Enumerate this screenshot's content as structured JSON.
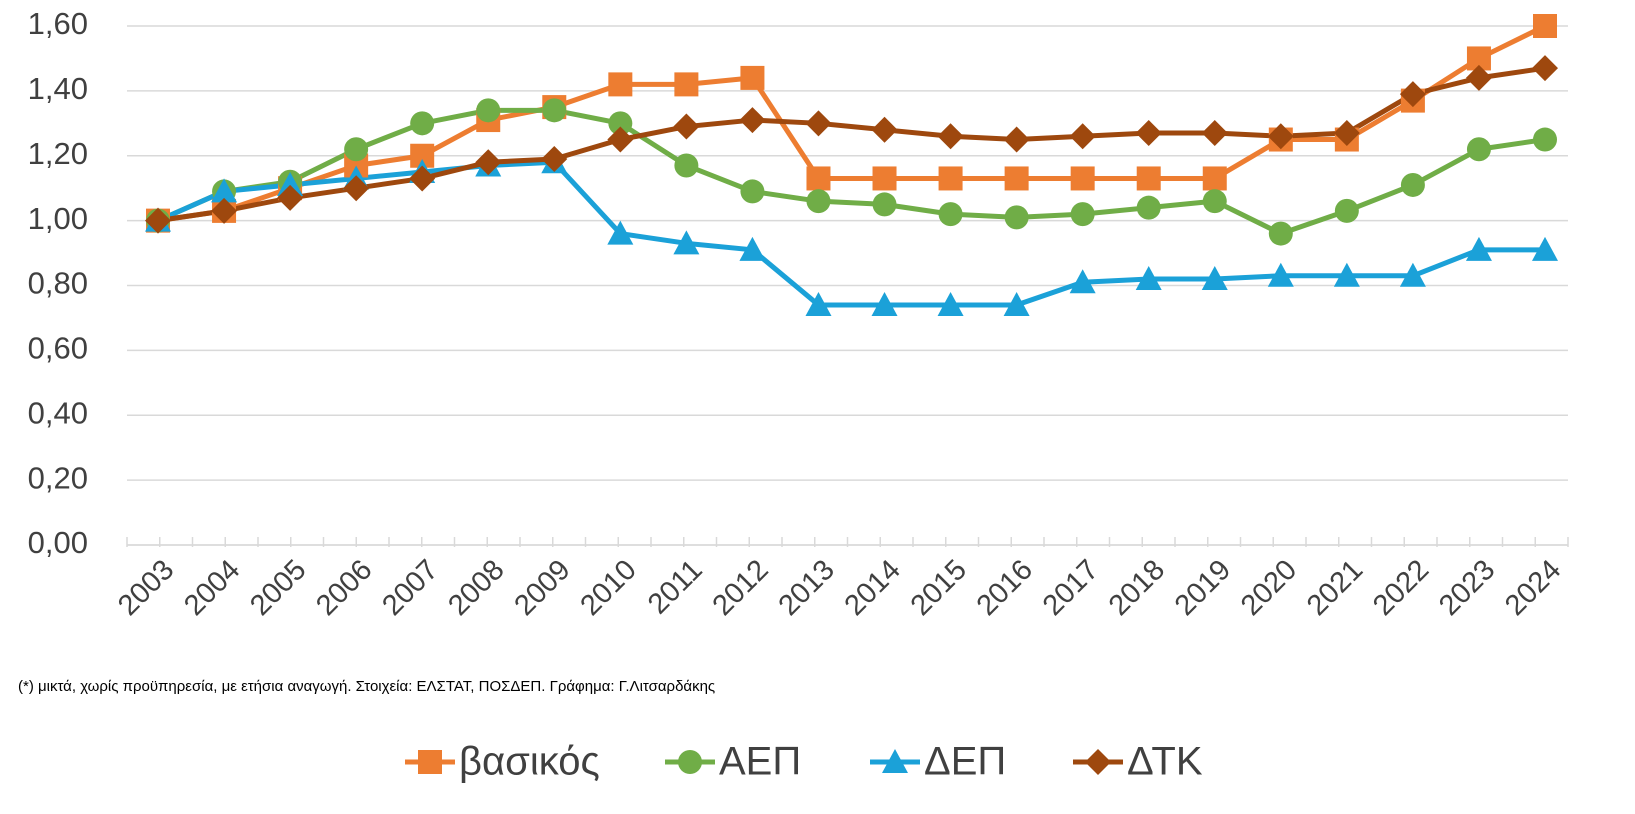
{
  "chart_data": {
    "type": "line",
    "categories": [
      "2003",
      "2004",
      "2005",
      "2006",
      "2007",
      "2008",
      "2009",
      "2010",
      "2011",
      "2012",
      "2013",
      "2014",
      "2015",
      "2016",
      "2017",
      "2018",
      "2019",
      "2020",
      "2021",
      "2022",
      "2023",
      "2024"
    ],
    "series": [
      {
        "name": "βασικός",
        "color": "#ed7d31",
        "marker": "square",
        "values": [
          1.0,
          1.03,
          1.1,
          1.17,
          1.2,
          1.31,
          1.35,
          1.42,
          1.42,
          1.44,
          1.13,
          1.13,
          1.13,
          1.13,
          1.13,
          1.13,
          1.13,
          1.25,
          1.25,
          1.37,
          1.5,
          1.6
        ]
      },
      {
        "name": "ΑΕΠ",
        "color": "#70ad47",
        "marker": "circle",
        "values": [
          1.0,
          1.09,
          1.12,
          1.22,
          1.3,
          1.34,
          1.34,
          1.3,
          1.17,
          1.09,
          1.06,
          1.05,
          1.02,
          1.01,
          1.02,
          1.04,
          1.06,
          0.96,
          1.03,
          1.11,
          1.22,
          1.25
        ]
      },
      {
        "name": "ΔΕΠ",
        "color": "#1ba1d8",
        "marker": "triangle",
        "values": [
          1.0,
          1.09,
          1.11,
          1.13,
          1.15,
          1.17,
          1.18,
          0.96,
          0.93,
          0.91,
          0.74,
          0.74,
          0.74,
          0.74,
          0.81,
          0.82,
          0.82,
          0.83,
          0.83,
          0.83,
          0.91,
          0.91
        ]
      },
      {
        "name": "ΔΤΚ",
        "color": "#9e480e",
        "marker": "diamond",
        "values": [
          1.0,
          1.03,
          1.07,
          1.1,
          1.13,
          1.18,
          1.19,
          1.25,
          1.29,
          1.31,
          1.3,
          1.28,
          1.26,
          1.25,
          1.26,
          1.27,
          1.27,
          1.26,
          1.27,
          1.39,
          1.44,
          1.47
        ]
      }
    ],
    "ylim": [
      0,
      1.6
    ],
    "yticks": [
      {
        "value": 0,
        "label": "0,00"
      },
      {
        "value": 0.2,
        "label": "0,20"
      },
      {
        "value": 0.4,
        "label": "0,40"
      },
      {
        "value": 0.6,
        "label": "0,60"
      },
      {
        "value": 0.8,
        "label": "0,80"
      },
      {
        "value": 1.0,
        "label": "1,00"
      },
      {
        "value": 1.2,
        "label": "1,20"
      },
      {
        "value": 1.4,
        "label": "1,40"
      },
      {
        "value": 1.6,
        "label": "1,60"
      }
    ],
    "grid": true,
    "legend": "bottom",
    "footnote": "(*) μικτά, χωρίς προϋπηρεσία, με ετήσια αναγωγή. Στοιχεία: ΕΛΣΤΑΤ, ΠΟΣΔΕΠ. Γράφημα: Γ.Λιτσαρδάκης"
  }
}
